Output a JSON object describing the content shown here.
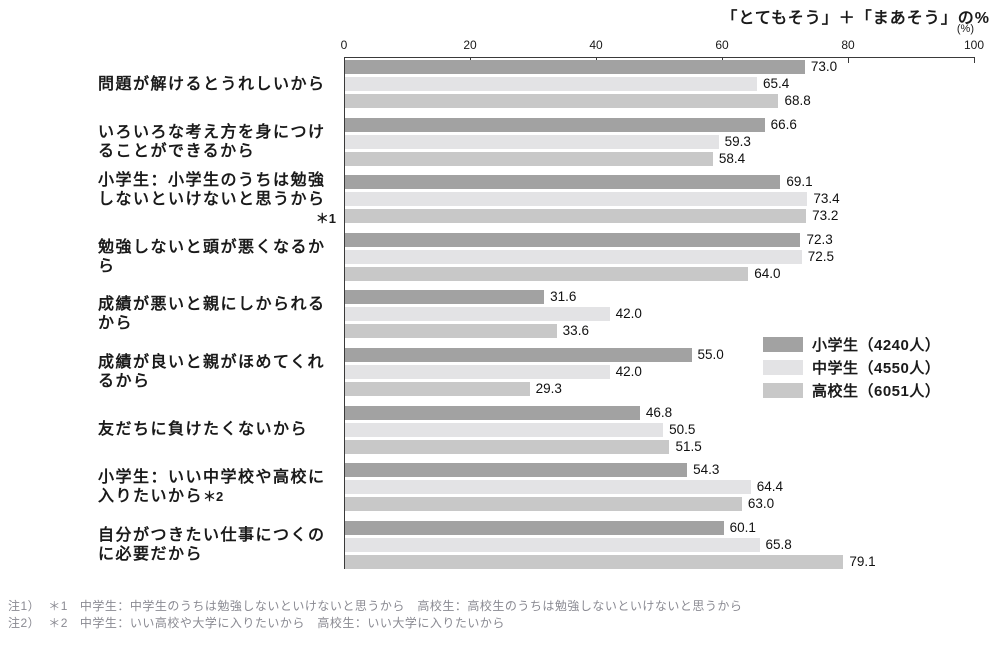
{
  "chart": {
    "title": "「とてもそう」＋「まあそう」の%",
    "unit_label": "(%)"
  },
  "chart_data": {
    "type": "bar",
    "orientation": "horizontal",
    "title": "「とてもそう」＋「まあそう」の%",
    "xlabel": "(%)",
    "xlim": [
      0,
      100
    ],
    "xticks": [
      0,
      20,
      40,
      60,
      80,
      100
    ],
    "grid": false,
    "value_labels": true,
    "legend_position": "right-middle",
    "categories": [
      "問題が解けるとうれしいから",
      "いろいろな考え方を身につけることができるから",
      "小学生：小学生のうちは勉強しないといけないと思うから＊1",
      "勉強しないと頭が悪くなるから",
      "成績が悪いと親にしかられるから",
      "成績が良いと親がほめてくれるから",
      "友だちに負けたくないから",
      "小学生：いい中学校や高校に入りたいから＊2",
      "自分がつきたい仕事につくのに必要だから"
    ],
    "series": [
      {
        "name": "小学生（4240人）",
        "color": "#a2a2a2",
        "values": [
          73.0,
          66.6,
          69.1,
          72.3,
          31.6,
          55.0,
          46.8,
          54.3,
          60.1
        ]
      },
      {
        "name": "中学生（4550人）",
        "color": "#e3e3e5",
        "values": [
          65.4,
          59.3,
          73.4,
          72.5,
          42.0,
          42.0,
          50.5,
          64.4,
          65.8
        ]
      },
      {
        "name": "高校生（6051人）",
        "color": "#c8c8c8",
        "values": [
          68.8,
          58.4,
          73.2,
          64.0,
          33.6,
          29.3,
          51.5,
          63.0,
          79.1
        ]
      }
    ]
  },
  "category_meta": [
    {
      "text": "問題が解けるとうれしいから",
      "marker": "",
      "marker_inline": false
    },
    {
      "text": "いろいろな考え方を身につけることができるから",
      "marker": "",
      "marker_inline": false
    },
    {
      "text": "小学生：小学生のうちは勉強しないといけないと思うから",
      "marker": "＊1",
      "marker_inline": false
    },
    {
      "text": "勉強しないと頭が悪くなるから",
      "marker": "",
      "marker_inline": false
    },
    {
      "text": "成績が悪いと親にしかられるから",
      "marker": "",
      "marker_inline": false
    },
    {
      "text": "成績が良いと親がほめてくれるから",
      "marker": "",
      "marker_inline": false
    },
    {
      "text": "友だちに負けたくないから",
      "marker": "",
      "marker_inline": false
    },
    {
      "text": "小学生：いい中学校や高校に入りたいから",
      "marker": "＊2",
      "marker_inline": true
    },
    {
      "text": "自分がつきたい仕事につくのに必要だから",
      "marker": "",
      "marker_inline": false
    }
  ],
  "footnotes": [
    {
      "prefix": "注1）",
      "marker": "＊1",
      "text": "中学生：中学生のうちは勉強しないといけないと思うから　高校生：高校生のうちは勉強しないといけないと思うから"
    },
    {
      "prefix": "注2）",
      "marker": "＊2",
      "text": "中学生：いい高校や大学に入りたいから　高校生：いい大学に入りたいから"
    }
  ],
  "colors": {
    "axis": "#3a3a3a",
    "value_label": "#111111",
    "footnote": "#8a8a92"
  }
}
